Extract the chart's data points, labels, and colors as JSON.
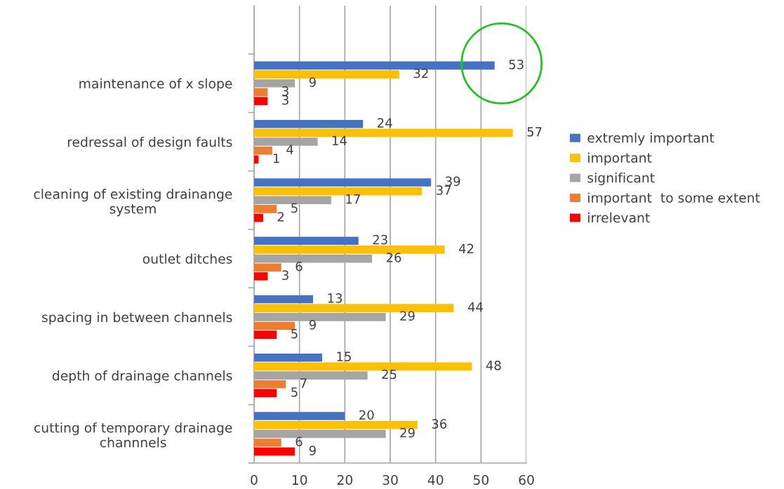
{
  "chart_data": {
    "type": "bar",
    "orientation": "horizontal",
    "categories": [
      "maintenance of x slope",
      "redressal of design faults",
      "cleaning of existing drainange system",
      "outlet ditches",
      "spacing in between channels",
      "depth of drainage channels",
      "cutting of temporary drainage channnels"
    ],
    "series": [
      {
        "name": "extremly important",
        "color": "#4472c4",
        "values": [
          53,
          24,
          39,
          23,
          13,
          15,
          20
        ]
      },
      {
        "name": "important",
        "color": "#ffc000",
        "values": [
          32,
          57,
          37,
          42,
          44,
          48,
          36
        ]
      },
      {
        "name": "significant",
        "color": "#a5a5a5",
        "values": [
          9,
          14,
          17,
          26,
          29,
          25,
          29
        ]
      },
      {
        "name": "important  to some extent",
        "color": "#ed7d31",
        "values": [
          3,
          4,
          5,
          6,
          9,
          7,
          6
        ]
      },
      {
        "name": "irrelevant",
        "color": "#ff0000",
        "values": [
          3,
          1,
          2,
          3,
          5,
          5,
          9
        ]
      }
    ],
    "xlim": [
      0,
      60
    ],
    "xticks": [
      0,
      10,
      20,
      30,
      40,
      50,
      60
    ],
    "grid": "x",
    "legend": "right",
    "data_labels": true
  }
}
